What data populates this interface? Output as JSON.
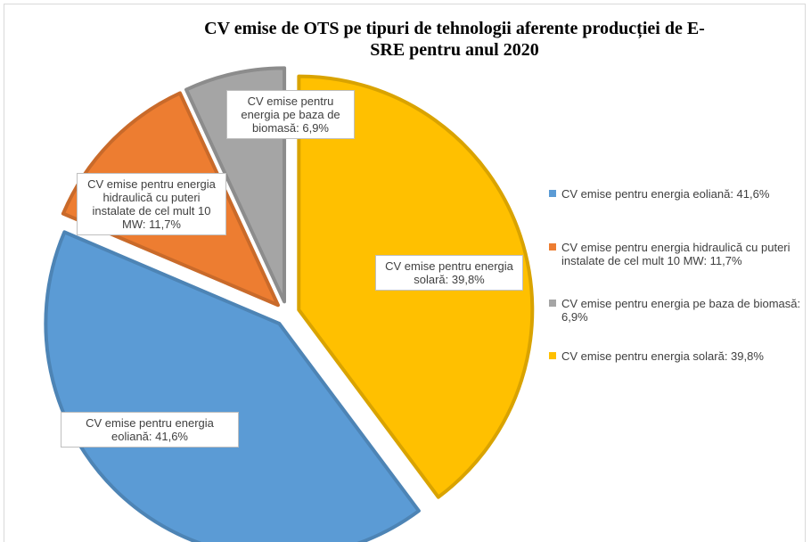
{
  "chart_data": {
    "type": "pie",
    "title": "CV emise de OTS pe tipuri de tehnologii aferente producției de E-SRE pentru anul 2020",
    "labels": [
      "CV emise pentru energia eoliană: 41,6%",
      "CV emise pentru energia  hidraulică cu puteri instalate de cel mult 10 MW: 11,7%",
      "CV emise pentru energia pe baza de biomasă: 6,9%",
      "CV emise pentru energia solară: 39,8%"
    ],
    "values": [
      41.6,
      11.7,
      6.9,
      39.8
    ],
    "colors": [
      "#5b9bd5",
      "#ed7d31",
      "#a5a5a5",
      "#ffc000"
    ],
    "legend": "right"
  }
}
